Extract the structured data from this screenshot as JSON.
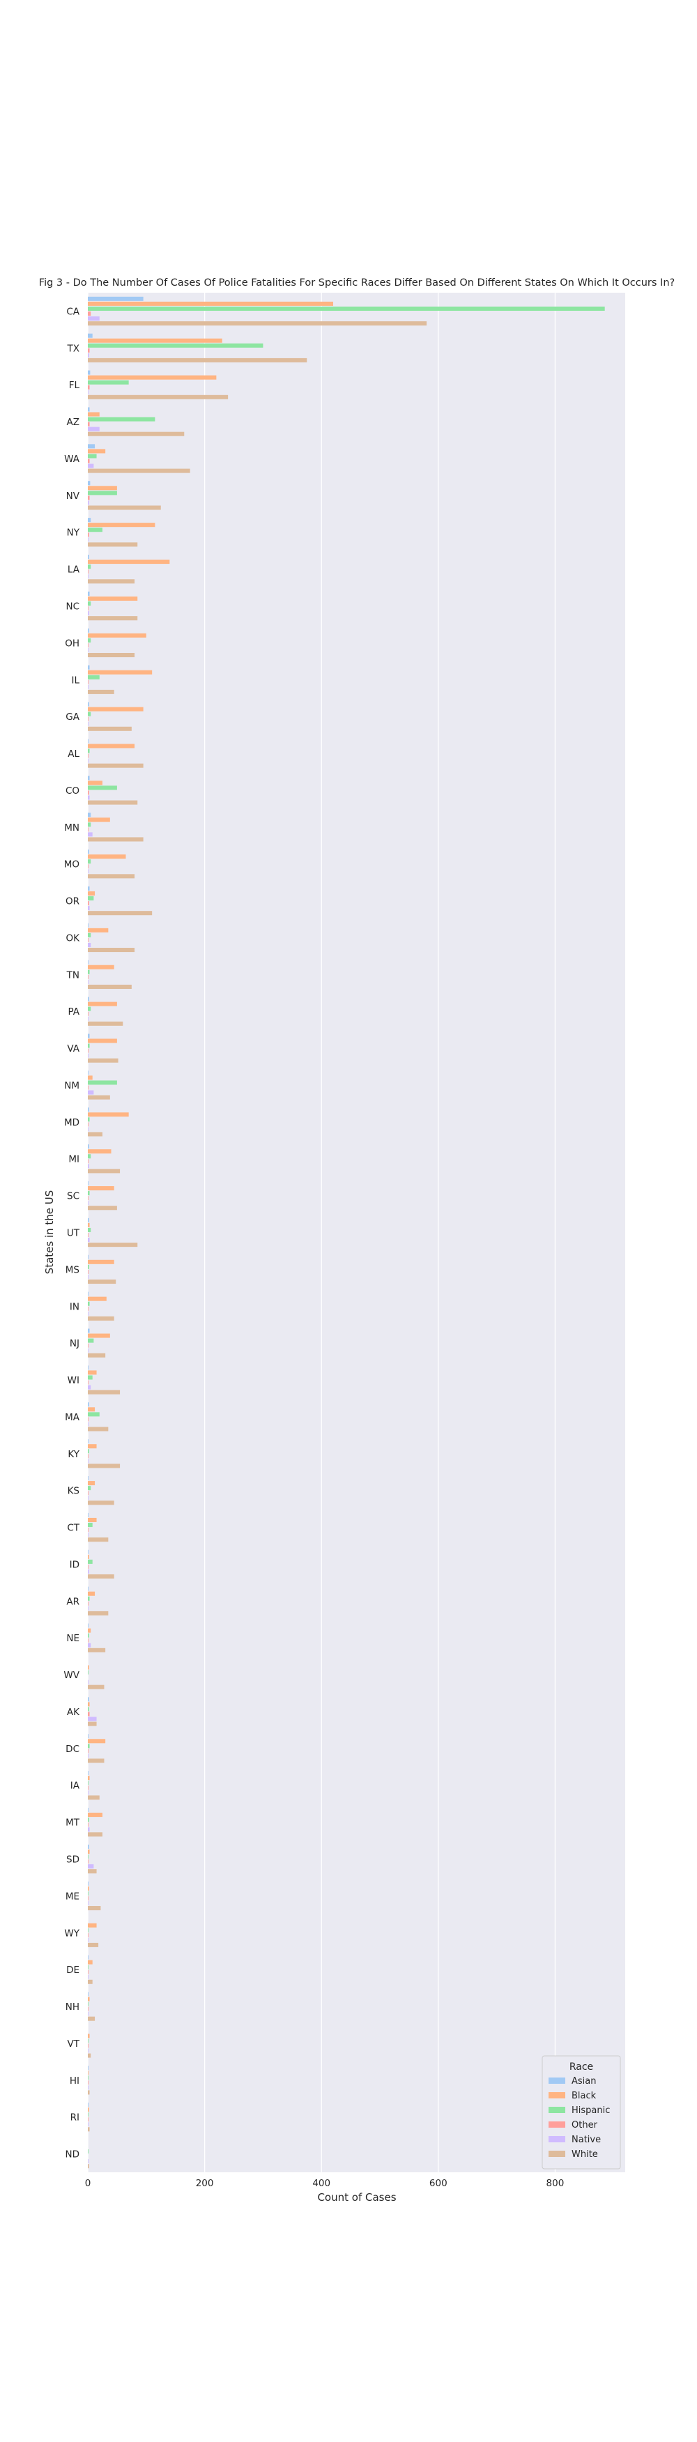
{
  "chart_data": {
    "type": "bar",
    "orientation": "horizontal",
    "title": "Fig 3 - Do The Number Of Cases Of Police Fatalities For Specific Races Differ Based On Different States On Which It Occurs In?",
    "xlabel": "Count of Cases",
    "ylabel": "States in the US",
    "xlim": [
      0,
      920
    ],
    "xticks": [
      0,
      200,
      400,
      600,
      800
    ],
    "grid": true,
    "legend": {
      "title": "Race",
      "placement": "lower-right"
    },
    "categories": [
      "CA",
      "TX",
      "FL",
      "AZ",
      "WA",
      "NV",
      "NY",
      "LA",
      "NC",
      "OH",
      "IL",
      "GA",
      "AL",
      "CO",
      "MN",
      "MO",
      "OR",
      "OK",
      "TN",
      "PA",
      "VA",
      "NM",
      "MD",
      "MI",
      "SC",
      "UT",
      "MS",
      "IN",
      "NJ",
      "WI",
      "MA",
      "KY",
      "KS",
      "CT",
      "ID",
      "AR",
      "NE",
      "WV",
      "AK",
      "DC",
      "IA",
      "MT",
      "SD",
      "ME",
      "WY",
      "DE",
      "NH",
      "VT",
      "HI",
      "RI",
      "ND"
    ],
    "series": [
      {
        "name": "Asian",
        "color": "#a1c9f4",
        "values": [
          95,
          8,
          4,
          3,
          12,
          4,
          5,
          2,
          3,
          2,
          3,
          2,
          1,
          3,
          5,
          2,
          3,
          1,
          1,
          2,
          3,
          1,
          2,
          2,
          1,
          2,
          1,
          1,
          3,
          1,
          2,
          1,
          1,
          1,
          1,
          1,
          1,
          0,
          2,
          1,
          1,
          1,
          2,
          1,
          0,
          1,
          1,
          0,
          1,
          1,
          0
        ]
      },
      {
        "name": "Black",
        "color": "#ffb482",
        "values": [
          420,
          230,
          220,
          20,
          30,
          50,
          115,
          140,
          85,
          100,
          110,
          95,
          80,
          25,
          38,
          65,
          12,
          35,
          45,
          50,
          50,
          8,
          70,
          40,
          45,
          3,
          45,
          32,
          38,
          15,
          12,
          15,
          12,
          15,
          2,
          12,
          5,
          2,
          3,
          30,
          3,
          25,
          3,
          2,
          15,
          8,
          3,
          3,
          1,
          2,
          0
        ]
      },
      {
        "name": "Hispanic",
        "color": "#8de5a1",
        "values": [
          885,
          300,
          70,
          115,
          15,
          50,
          25,
          5,
          5,
          5,
          20,
          5,
          3,
          50,
          5,
          5,
          10,
          5,
          3,
          5,
          3,
          50,
          3,
          5,
          3,
          5,
          2,
          3,
          10,
          8,
          20,
          2,
          5,
          8,
          8,
          3,
          2,
          1,
          2,
          3,
          1,
          2,
          1,
          1,
          1,
          1,
          1,
          1,
          1,
          1,
          1
        ]
      },
      {
        "name": "Other",
        "color": "#ff9f9b",
        "values": [
          5,
          3,
          3,
          3,
          3,
          3,
          2,
          1,
          1,
          1,
          1,
          1,
          1,
          2,
          1,
          1,
          2,
          1,
          1,
          1,
          1,
          1,
          1,
          1,
          1,
          1,
          1,
          1,
          1,
          1,
          1,
          1,
          1,
          1,
          1,
          1,
          1,
          0,
          3,
          1,
          1,
          1,
          1,
          1,
          1,
          1,
          1,
          1,
          1,
          1,
          0
        ]
      },
      {
        "name": "Native",
        "color": "#d0bbff",
        "values": [
          20,
          2,
          1,
          20,
          10,
          2,
          1,
          1,
          2,
          1,
          1,
          1,
          1,
          3,
          8,
          1,
          3,
          5,
          1,
          1,
          1,
          10,
          1,
          2,
          1,
          3,
          1,
          1,
          1,
          5,
          1,
          1,
          1,
          1,
          2,
          1,
          5,
          1,
          15,
          1,
          1,
          3,
          10,
          1,
          1,
          1,
          1,
          1,
          1,
          1,
          1
        ]
      },
      {
        "name": "White",
        "color": "#debb9b",
        "values": [
          580,
          375,
          240,
          165,
          175,
          125,
          85,
          80,
          85,
          80,
          45,
          75,
          95,
          85,
          95,
          80,
          110,
          80,
          75,
          60,
          52,
          38,
          25,
          55,
          50,
          85,
          48,
          45,
          30,
          55,
          35,
          55,
          45,
          35,
          45,
          35,
          30,
          28,
          15,
          28,
          20,
          25,
          15,
          22,
          18,
          8,
          12,
          5,
          3,
          3,
          2
        ]
      }
    ]
  }
}
